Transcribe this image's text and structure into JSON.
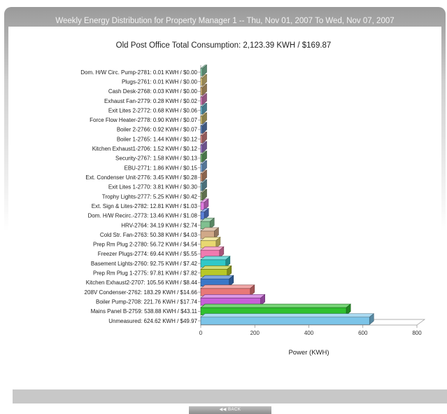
{
  "header": {
    "title": "Weekly Energy Distribution for Property Manager 1 -- Thu, Nov 01, 2007 To Wed, Nov 07, 2007"
  },
  "footer": {
    "back_label": "◀◀ BACK"
  },
  "chart_data": {
    "type": "bar",
    "orientation": "horizontal",
    "style": "3d",
    "title": "Old Post Office Total Consumption: 2,123.39 KWH / $169.87",
    "xlabel": "Power (KWH)",
    "ylabel": "",
    "xlim": [
      0,
      800
    ],
    "xticks": [
      "0",
      "200",
      "400",
      "600",
      "800"
    ],
    "grid": false,
    "categories": [
      "Dom. H/W Circ. Pump-2781: 0.01 KWH / $0.00",
      "Plugs-2761: 0.01 KWH / $0.00",
      "Cash Desk-2768: 0.03 KWH / $0.00",
      "Exhaust Fan-2779: 0.28 KWH / $0.02",
      "Exit Lites 2-2772: 0.68 KWH / $0.06",
      "Force Flow Heater-2778: 0.90 KWH / $0.07",
      "Boiler 2-2766: 0.92 KWH / $0.07",
      "Boiler 1-2765: 1.44 KWH / $0.12",
      "Kitchen Exhaust1-2706: 1.52 KWH / $0.12",
      "Security-2767: 1.58 KWH / $0.13",
      "EBU-2771: 1.86 KWH / $0.15",
      "Ext. Condenser Unit-2776: 3.45 KWH / $0.28",
      "Exit Lites 1-2770: 3.81 KWH / $0.30",
      "Trophy Lights-2777: 5.25 KWH / $0.42",
      "Ext. Sign & Lites-2782: 12.81 KWH / $1.03",
      "Dom. H/W Recirc.-2773: 13.46 KWH / $1.08",
      "HRV-2764: 34.19 KWH / $2.74",
      "Cold Str. Fan-2763: 50.38 KWH / $4.03",
      "Prep Rm Plug 2-2780: 56.72 KWH / $4.54",
      "Freezer Plugs-2774: 69.44 KWH / $5.55",
      "Basement Lights-2760: 92.75 KWH / $7.42",
      "Prep Rm Plug 1-2775: 97.81 KWH / $7.82",
      "Kitchen Exhaust2-2707: 105.56 KWH / $8.44",
      "208V Condenser-2762: 183.29 KWH / $14.66",
      "Boiler Pump-2708: 221.76 KWH / $17.74",
      "Mains Panel B-2759: 538.88 KWH / $43.11",
      "Unmeasured: 624.62 KWH / $49.97"
    ],
    "values": [
      0.01,
      0.01,
      0.03,
      0.28,
      0.68,
      0.9,
      0.92,
      1.44,
      1.52,
      1.58,
      1.86,
      3.45,
      3.81,
      5.25,
      12.81,
      13.46,
      34.19,
      50.38,
      56.72,
      69.44,
      92.75,
      97.81,
      105.56,
      183.29,
      221.76,
      538.88,
      624.62
    ],
    "colors": [
      "#7fbf9f",
      "#d9c27a",
      "#c9a86f",
      "#d47ab8",
      "#66b0c8",
      "#c8b86b",
      "#5b7fb8",
      "#d08080",
      "#9a74c8",
      "#6aa86a",
      "#7aa8d8",
      "#c89070",
      "#6aa0b0",
      "#88a070",
      "#e07ae0",
      "#5a7fd8",
      "#7fbf8f",
      "#d0a888",
      "#e8d870",
      "#f07ab0",
      "#30c8c8",
      "#b8c828",
      "#3a78c8",
      "#e87878",
      "#c860d8",
      "#30c030",
      "#7cc4e8"
    ]
  }
}
